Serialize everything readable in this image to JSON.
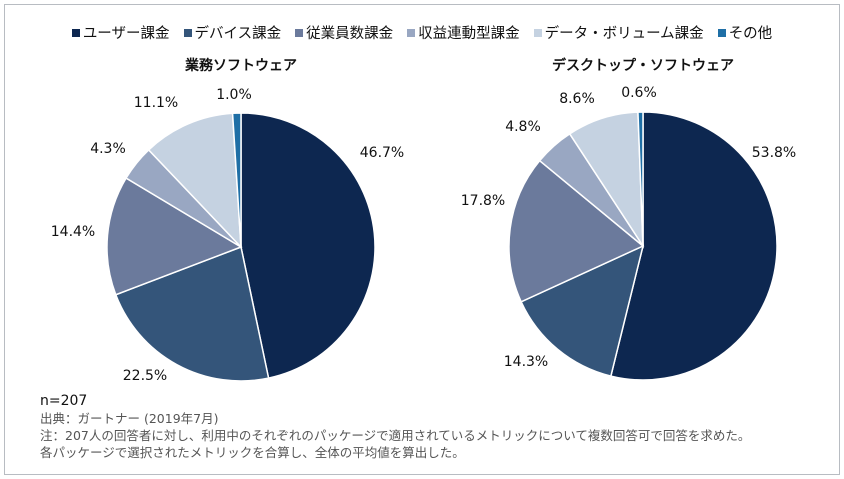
{
  "colors": [
    "#0d2750",
    "#34557a",
    "#6b7a9c",
    "#99a7c2",
    "#c5d2e1",
    "#1f6fa6"
  ],
  "legend": [
    "ユーザー課金",
    "デバイス課金",
    "従業員数課金",
    "収益連動型課金",
    "データ・ボリューム課金",
    "その他"
  ],
  "chart_data": [
    {
      "type": "pie",
      "title": "業務ソフトウェア",
      "categories": [
        "ユーザー課金",
        "デバイス課金",
        "従業員数課金",
        "収益連動型課金",
        "データ・ボリューム課金",
        "その他"
      ],
      "values": [
        46.7,
        22.5,
        14.4,
        4.3,
        11.1,
        1.0
      ],
      "labels": [
        "46.7%",
        "22.5%",
        "14.4%",
        "4.3%",
        "11.1%",
        "1.0%"
      ]
    },
    {
      "type": "pie",
      "title": "デスクトップ・ソフトウェア",
      "categories": [
        "ユーザー課金",
        "デバイス課金",
        "従業員数課金",
        "収益連動型課金",
        "データ・ボリューム課金",
        "その他"
      ],
      "values": [
        53.8,
        14.3,
        17.8,
        4.8,
        8.6,
        0.6
      ],
      "labels": [
        "53.8%",
        "14.3%",
        "17.8%",
        "4.8%",
        "8.6%",
        "0.6%"
      ]
    }
  ],
  "footer": {
    "n": "n=207",
    "source": "出典：ガートナー (2019年7月)",
    "note1": "注：207人の回答者に対し、利用中のそれぞれのパッケージで適用されているメトリックについて複数回答可で回答を求めた。",
    "note2": "各パッケージで選択されたメトリックを合算し、全体の平均値を算出した。"
  }
}
